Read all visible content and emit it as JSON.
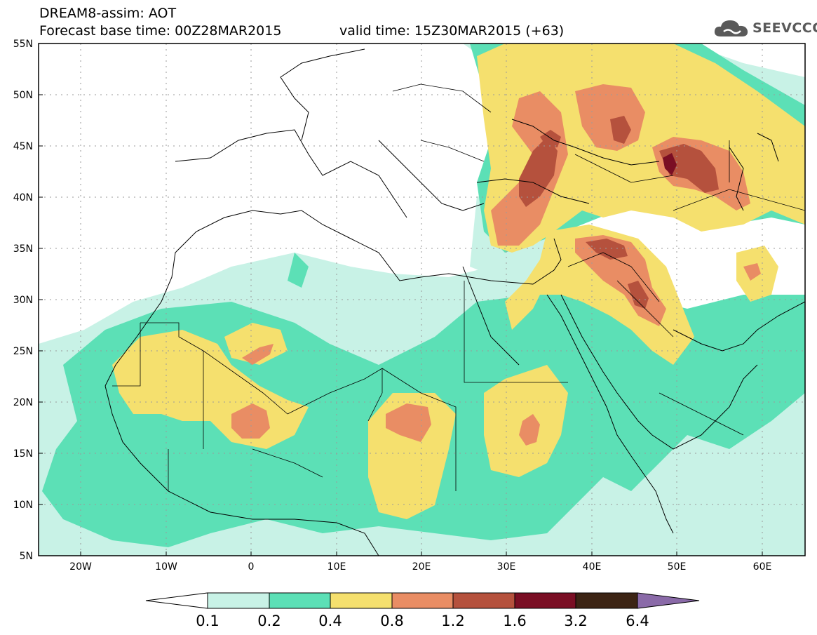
{
  "header": {
    "title_line1": "DREAM8-assim: AOT",
    "title_line2": "Forecast base time: 00Z28MAR2015",
    "valid_time": "valid time: 15Z30MAR2015 (+63)",
    "logo_text": "SEEVCCC",
    "logo_icon": "cloud-icon"
  },
  "map": {
    "projection": "lat-lon",
    "lon_range": [
      -25,
      65
    ],
    "lat_range": [
      5,
      55
    ],
    "grid": true,
    "lat_ticks": [
      "55N",
      "50N",
      "45N",
      "40N",
      "35N",
      "30N",
      "25N",
      "20N",
      "15N",
      "10N",
      "5N"
    ],
    "lon_ticks": [
      "20W",
      "10W",
      "0",
      "10E",
      "20E",
      "30E",
      "40E",
      "50E",
      "60E"
    ]
  },
  "colorbar": {
    "labels": [
      "0.1",
      "0.2",
      "0.4",
      "0.8",
      "1.2",
      "1.6",
      "3.2",
      "6.4"
    ],
    "colors": [
      "#ffffff",
      "#c8f2e6",
      "#5ce0b6",
      "#f5e06e",
      "#e98d64",
      "#b5513d",
      "#7a0e24",
      "#3c2414",
      "#8a6aa8"
    ]
  }
}
